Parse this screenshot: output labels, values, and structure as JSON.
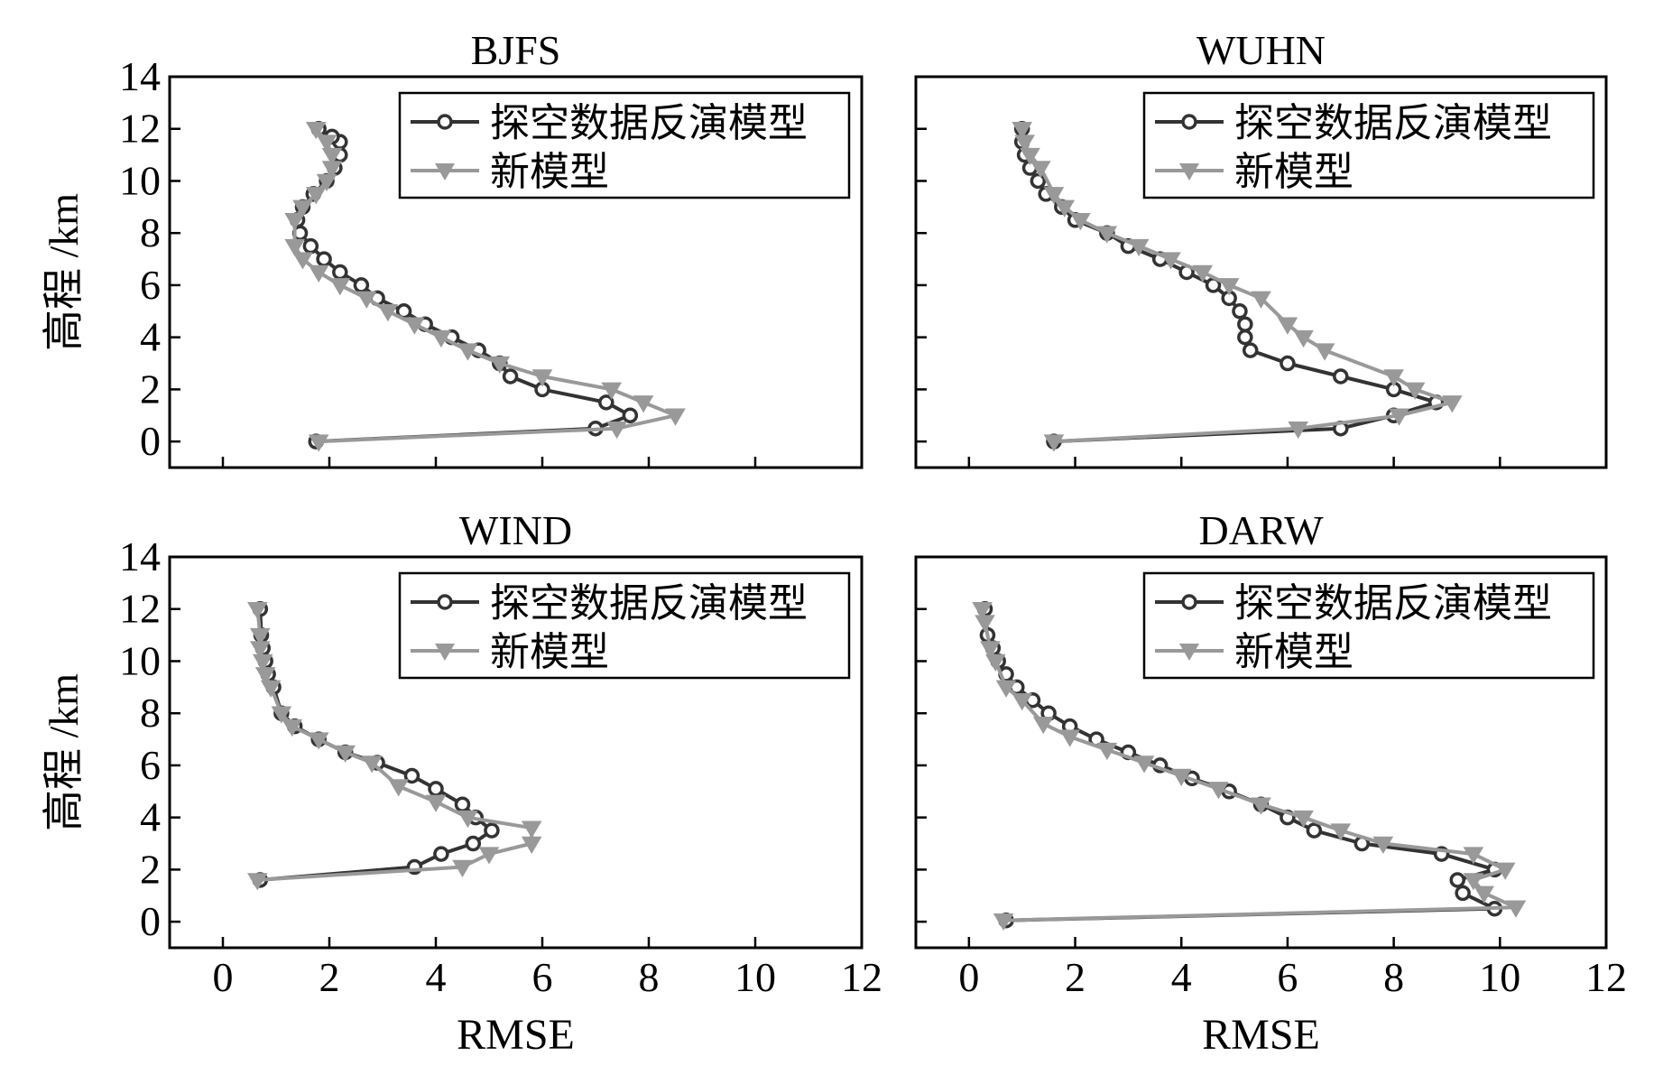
{
  "figure": {
    "ylabel": "高程 /km",
    "xlabel": "RMSE",
    "colors": {
      "series_a": "#333333",
      "series_b": "#999999",
      "axis": "#000000"
    }
  },
  "chart_data": [
    {
      "type": "line",
      "title": "BJFS",
      "xlim": [
        -1,
        12
      ],
      "ylim": [
        -1,
        14
      ],
      "xticks": [
        "0",
        "2",
        "4",
        "6",
        "8",
        "10",
        "12"
      ],
      "yticks": [
        "0",
        "2",
        "4",
        "6",
        "8",
        "10",
        "12",
        "14"
      ],
      "legend_position": "top-right",
      "series": [
        {
          "name": "探空数据反演模型",
          "marker": "circle",
          "x": [
            1.75,
            7.0,
            7.65,
            7.2,
            6.0,
            5.4,
            5.2,
            4.8,
            4.3,
            3.8,
            3.4,
            2.9,
            2.6,
            2.2,
            1.9,
            1.65,
            1.45,
            1.4,
            1.5,
            1.7,
            1.95,
            2.1,
            2.2,
            2.2,
            2.05,
            1.8
          ],
          "y": [
            0,
            0.5,
            1.0,
            1.5,
            2.0,
            2.5,
            3.0,
            3.5,
            4.0,
            4.5,
            5.0,
            5.5,
            6.0,
            6.5,
            7.0,
            7.5,
            8.0,
            8.5,
            9.0,
            9.5,
            10.0,
            10.5,
            11.0,
            11.5,
            11.7,
            12.0
          ]
        },
        {
          "name": "新模型",
          "marker": "triangle-down",
          "x": [
            1.8,
            7.4,
            8.5,
            7.9,
            7.3,
            6.0,
            5.2,
            4.6,
            4.1,
            3.6,
            3.1,
            2.7,
            2.2,
            1.8,
            1.5,
            1.35,
            1.35,
            1.5,
            1.75,
            1.95,
            2.05,
            2.05,
            1.95,
            1.75
          ],
          "y": [
            0,
            0.5,
            1.0,
            1.5,
            2.0,
            2.5,
            3.0,
            3.5,
            4.0,
            4.5,
            5.0,
            5.5,
            6.0,
            6.5,
            7.0,
            7.5,
            8.5,
            9.0,
            9.5,
            10.0,
            10.5,
            11.0,
            11.5,
            12.0
          ]
        }
      ]
    },
    {
      "type": "line",
      "title": "WUHN",
      "xlim": [
        -1,
        12
      ],
      "ylim": [
        -1,
        14
      ],
      "xticks": [
        "0",
        "2",
        "4",
        "6",
        "8",
        "10",
        "12"
      ],
      "yticks": [
        "0",
        "2",
        "4",
        "6",
        "8",
        "10",
        "12",
        "14"
      ],
      "legend_position": "top-right",
      "series": [
        {
          "name": "探空数据反演模型",
          "marker": "circle",
          "x": [
            1.6,
            7.0,
            8.0,
            8.8,
            8.0,
            7.0,
            6.0,
            5.3,
            5.2,
            5.2,
            5.1,
            4.9,
            4.6,
            4.1,
            3.6,
            3.0,
            2.6,
            2.0,
            1.75,
            1.45,
            1.3,
            1.15,
            1.05,
            1.0,
            1.0
          ],
          "y": [
            0,
            0.5,
            1.0,
            1.5,
            2.0,
            2.5,
            3.0,
            3.5,
            4.0,
            4.5,
            5.0,
            5.5,
            6.0,
            6.5,
            7.0,
            7.5,
            8.0,
            8.5,
            9.0,
            9.5,
            10.0,
            10.5,
            11.0,
            11.5,
            12.0
          ]
        },
        {
          "name": "新模型",
          "marker": "triangle-down",
          "x": [
            1.6,
            6.2,
            8.1,
            9.1,
            8.4,
            8.0,
            6.7,
            6.3,
            6.0,
            5.5,
            4.9,
            4.4,
            3.8,
            3.2,
            2.6,
            2.1,
            1.8,
            1.6,
            1.35,
            1.15,
            1.05,
            1.0
          ],
          "y": [
            0,
            0.5,
            1.0,
            1.5,
            2.0,
            2.5,
            3.5,
            4.0,
            4.5,
            5.5,
            6.0,
            6.5,
            7.0,
            7.5,
            8.0,
            8.5,
            9.0,
            9.5,
            10.5,
            11.0,
            11.5,
            12.0
          ]
        }
      ]
    },
    {
      "type": "line",
      "title": "WIND",
      "xlim": [
        -1,
        12
      ],
      "ylim": [
        -1,
        14
      ],
      "xticks": [
        "0",
        "2",
        "4",
        "6",
        "8",
        "10",
        "12"
      ],
      "yticks": [
        "0",
        "2",
        "4",
        "6",
        "8",
        "10",
        "12",
        "14"
      ],
      "legend_position": "top-right",
      "series": [
        {
          "name": "探空数据反演模型",
          "marker": "circle",
          "x": [
            0.7,
            3.6,
            4.1,
            4.7,
            5.05,
            4.75,
            4.5,
            4.0,
            3.55,
            2.9,
            2.3,
            1.8,
            1.35,
            1.1,
            0.95,
            0.85,
            0.8,
            0.75,
            0.72,
            0.7
          ],
          "y": [
            1.6,
            2.1,
            2.6,
            3.0,
            3.5,
            4.0,
            4.5,
            5.1,
            5.6,
            6.1,
            6.5,
            7.0,
            7.5,
            8.0,
            9.0,
            9.5,
            10.0,
            10.5,
            11.0,
            12.0
          ]
        },
        {
          "name": "新模型",
          "marker": "triangle-down",
          "x": [
            0.65,
            4.5,
            5.0,
            5.8,
            5.8,
            4.6,
            4.0,
            3.3,
            2.8,
            2.3,
            1.8,
            1.3,
            1.1,
            0.9,
            0.8,
            0.75,
            0.7,
            0.7,
            0.65
          ],
          "y": [
            1.6,
            2.1,
            2.6,
            3.0,
            3.6,
            4.0,
            4.6,
            5.2,
            6.1,
            6.5,
            7.0,
            7.5,
            8.0,
            9.0,
            9.5,
            10.0,
            10.5,
            11.0,
            12.0
          ]
        }
      ]
    },
    {
      "type": "line",
      "title": "DARW",
      "xlim": [
        -1,
        12
      ],
      "ylim": [
        -1,
        14
      ],
      "xticks": [
        "0",
        "2",
        "4",
        "6",
        "8",
        "10",
        "12"
      ],
      "yticks": [
        "0",
        "2",
        "4",
        "6",
        "8",
        "10",
        "12",
        "14"
      ],
      "legend_position": "top-right",
      "series": [
        {
          "name": "探空数据反演模型",
          "marker": "circle",
          "x": [
            0.7,
            9.9,
            9.3,
            9.2,
            9.9,
            8.9,
            7.4,
            6.5,
            6.0,
            5.5,
            4.9,
            4.2,
            3.6,
            3.0,
            2.4,
            1.9,
            1.5,
            1.2,
            0.9,
            0.7,
            0.55,
            0.45,
            0.35,
            0.3
          ],
          "y": [
            0.05,
            0.5,
            1.1,
            1.6,
            2.0,
            2.6,
            3.0,
            3.5,
            4.0,
            4.5,
            5.0,
            5.5,
            6.0,
            6.5,
            7.0,
            7.5,
            8.0,
            8.5,
            9.0,
            9.5,
            10.0,
            10.5,
            11.0,
            12.0
          ]
        },
        {
          "name": "新模型",
          "marker": "triangle-down",
          "x": [
            0.65,
            10.3,
            9.7,
            9.5,
            10.1,
            9.5,
            7.8,
            7.0,
            6.3,
            5.5,
            4.7,
            4.0,
            3.3,
            2.6,
            1.9,
            1.4,
            1.0,
            0.7,
            0.5,
            0.4,
            0.3,
            0.25
          ],
          "y": [
            0.05,
            0.55,
            1.1,
            1.6,
            2.0,
            2.6,
            3.0,
            3.5,
            4.0,
            4.5,
            5.1,
            5.6,
            6.1,
            6.6,
            7.1,
            7.6,
            8.5,
            9.0,
            10.0,
            10.5,
            11.5,
            12.0
          ]
        }
      ]
    }
  ]
}
